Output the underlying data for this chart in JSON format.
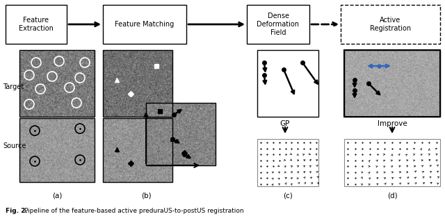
{
  "fig_width": 6.4,
  "fig_height": 3.18,
  "bg_color": "#ffffff",
  "caption_bold": "Fig. 2.",
  "caption_rest": " Pipeline of the feature-based active preduraUS-to-postUS registration",
  "box_labels": [
    "Feature\nExtraction",
    "Feature Matching",
    "Dense\nDeformation\nField",
    "Active\nRegistration"
  ],
  "bottom_labels": [
    "(a)",
    "(b)",
    "(c)",
    "(d)"
  ],
  "side_labels": [
    "Target",
    "Source"
  ],
  "gp_label": "GP",
  "improve_label": "Improve",
  "blue_color": "#3366bb",
  "arrow_color": "#000000"
}
